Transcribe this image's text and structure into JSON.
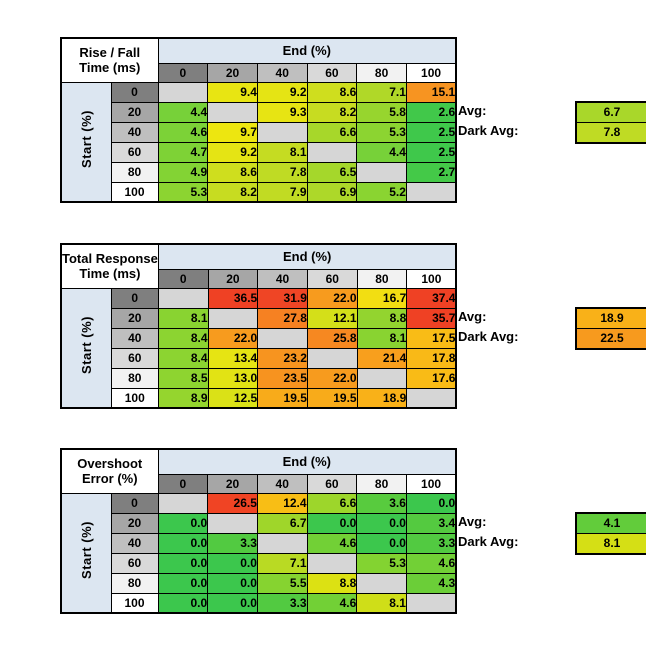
{
  "palette": {
    "background": "#FFFFFF",
    "border": "#000000",
    "axis_band": "#DCE6F1",
    "blank_cell": "#D6D6D6",
    "header_shades": [
      "#7F7F7F",
      "#A6A6A6",
      "#BFBFBF",
      "#D9D9D9",
      "#F2F2F2",
      "#FFFFFF"
    ]
  },
  "chart_data": [
    {
      "type": "heatmap",
      "title": [
        "Rise / Fall",
        "Time (ms)"
      ],
      "col_header": "End (%)",
      "row_header": "Start (%)",
      "columns": [
        "0",
        "20",
        "40",
        "60",
        "80",
        "100"
      ],
      "rows": [
        "0",
        "20",
        "40",
        "60",
        "80",
        "100"
      ],
      "values": [
        [
          null,
          9.4,
          9.2,
          8.6,
          7.1,
          15.1
        ],
        [
          4.4,
          null,
          9.3,
          8.2,
          5.8,
          2.6
        ],
        [
          4.6,
          9.7,
          null,
          6.6,
          5.3,
          2.5
        ],
        [
          4.7,
          9.2,
          8.1,
          null,
          4.4,
          2.5
        ],
        [
          4.9,
          8.6,
          7.8,
          6.5,
          null,
          2.7
        ],
        [
          5.3,
          8.2,
          7.9,
          6.9,
          5.2,
          null
        ]
      ],
      "cell_colors": [
        [
          null,
          "#E8E512",
          "#E5E414",
          "#CFDE1E",
          "#B0D828",
          "#F79421"
        ],
        [
          "#77D139",
          null,
          "#E7E413",
          "#C7DC21",
          "#97D52E",
          "#41C84A"
        ],
        [
          "#7CD237",
          "#EDE610",
          null,
          "#A7D72A",
          "#8CD431",
          "#3FC84B"
        ],
        [
          "#7ED236",
          "#E5E414",
          "#C5DC22",
          null,
          "#77D139",
          "#3FC84B"
        ],
        [
          "#83D334",
          "#CFDE1E",
          "#BFDB24",
          "#A5D72B",
          null,
          "#44C948"
        ],
        [
          "#8CD431",
          "#C7DC21",
          "#C1DB23",
          "#ADD829",
          "#8AD431",
          null
        ]
      ],
      "avg": {
        "label": "Avg:",
        "value": "6.7",
        "color": "#A9D72A"
      },
      "dark_avg": {
        "label": "Dark Avg:",
        "value": "7.8",
        "color": "#BFDB24"
      }
    },
    {
      "type": "heatmap",
      "title": [
        "Total Response",
        "Time (ms)"
      ],
      "col_header": "End (%)",
      "row_header": "Start (%)",
      "columns": [
        "0",
        "20",
        "40",
        "60",
        "80",
        "100"
      ],
      "rows": [
        "0",
        "20",
        "40",
        "60",
        "80",
        "100"
      ],
      "values": [
        [
          null,
          36.5,
          31.9,
          22.0,
          16.7,
          37.4
        ],
        [
          8.1,
          null,
          27.8,
          12.1,
          8.8,
          35.7
        ],
        [
          8.4,
          22.0,
          null,
          25.8,
          8.1,
          17.5
        ],
        [
          8.4,
          13.4,
          23.2,
          null,
          21.4,
          17.8
        ],
        [
          8.5,
          13.0,
          23.5,
          22.0,
          null,
          17.6
        ],
        [
          8.9,
          12.5,
          19.5,
          19.5,
          18.9,
          null
        ]
      ],
      "cell_colors": [
        [
          null,
          "#EF4124",
          "#EF4525",
          "#F79B1E",
          "#F2DE12",
          "#EF4124"
        ],
        [
          "#89D331",
          null,
          "#F68122",
          "#D4DF19",
          "#93D42F",
          "#EF4124"
        ],
        [
          "#8CD431",
          "#F79B1E",
          null,
          "#F68821",
          "#89D331",
          "#F9BC16"
        ],
        [
          "#8CD431",
          "#E6E413",
          "#F7941F",
          null,
          "#F89F1D",
          "#F9B917"
        ],
        [
          "#8ED430",
          "#E2E314",
          "#F7931F",
          "#F79B1E",
          null,
          "#F9BB16"
        ],
        [
          "#95D52E",
          "#DAE117",
          "#F8AB1A",
          "#F8AB1A",
          "#F9B118",
          null
        ]
      ],
      "avg": {
        "label": "Avg:",
        "value": "18.9",
        "color": "#F9B118"
      },
      "dark_avg": {
        "label": "Dark Avg:",
        "value": "22.5",
        "color": "#F79A1E"
      }
    },
    {
      "type": "heatmap",
      "title": [
        "Overshoot",
        "Error (%)"
      ],
      "col_header": "End (%)",
      "row_header": "Start (%)",
      "columns": [
        "0",
        "20",
        "40",
        "60",
        "80",
        "100"
      ],
      "rows": [
        "0",
        "20",
        "40",
        "60",
        "80",
        "100"
      ],
      "values": [
        [
          null,
          26.5,
          12.4,
          6.6,
          3.6,
          0.0
        ],
        [
          0.0,
          null,
          6.7,
          0.0,
          0.0,
          3.4
        ],
        [
          0.0,
          3.3,
          null,
          4.6,
          0.0,
          3.3
        ],
        [
          0.0,
          0.0,
          7.1,
          null,
          5.3,
          4.6
        ],
        [
          0.0,
          0.0,
          5.5,
          8.8,
          null,
          4.3
        ],
        [
          0.0,
          0.0,
          3.3,
          4.6,
          8.1,
          null
        ]
      ],
      "cell_colors": [
        [
          null,
          "#F04424",
          "#F8BE15",
          "#9DD62B",
          "#58CB3E",
          "#3CC74D"
        ],
        [
          "#3CC74D",
          null,
          "#9FD62A",
          "#3CC74D",
          "#3CC74D",
          "#54CA40"
        ],
        [
          "#3CC74D",
          "#52CA41",
          null,
          "#72D036",
          "#3CC74D",
          "#52CA41"
        ],
        [
          "#3CC74D",
          "#3CC74D",
          "#B9DA23",
          null,
          "#83D331",
          "#72D036"
        ],
        [
          "#3CC74D",
          "#3CC74D",
          "#86D330",
          "#DCE113",
          null,
          "#6BCE38"
        ],
        [
          "#3CC74D",
          "#3CC74D",
          "#52CA41",
          "#72D036",
          "#CFDE18",
          null
        ]
      ],
      "avg": {
        "label": "Avg:",
        "value": "4.1",
        "color": "#62CC3B"
      },
      "dark_avg": {
        "label": "Dark Avg:",
        "value": "8.1",
        "color": "#D5DF15"
      }
    }
  ]
}
